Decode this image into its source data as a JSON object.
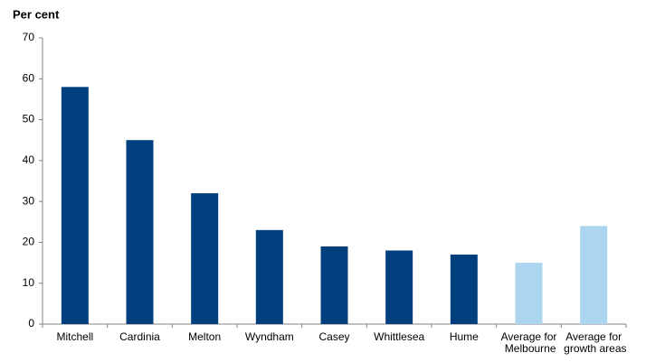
{
  "chart_data": {
    "type": "bar",
    "y_axis_label": "Per cent",
    "categories": [
      "Mitchell",
      "Cardinia",
      "Melton",
      "Wyndham",
      "Casey",
      "Whittlesea",
      "Hume",
      "Average for Melbourne",
      "Average for growth areas"
    ],
    "values": [
      58,
      45,
      32,
      23,
      19,
      18,
      17,
      15,
      24
    ],
    "colors": [
      "#003f7d",
      "#003f7d",
      "#003f7d",
      "#003f7d",
      "#003f7d",
      "#003f7d",
      "#003f7d",
      "#acd5f0",
      "#acd5f0"
    ],
    "ylim": [
      0,
      70
    ],
    "yticks": [
      0,
      10,
      20,
      30,
      40,
      50,
      60,
      70
    ],
    "grid": false
  }
}
